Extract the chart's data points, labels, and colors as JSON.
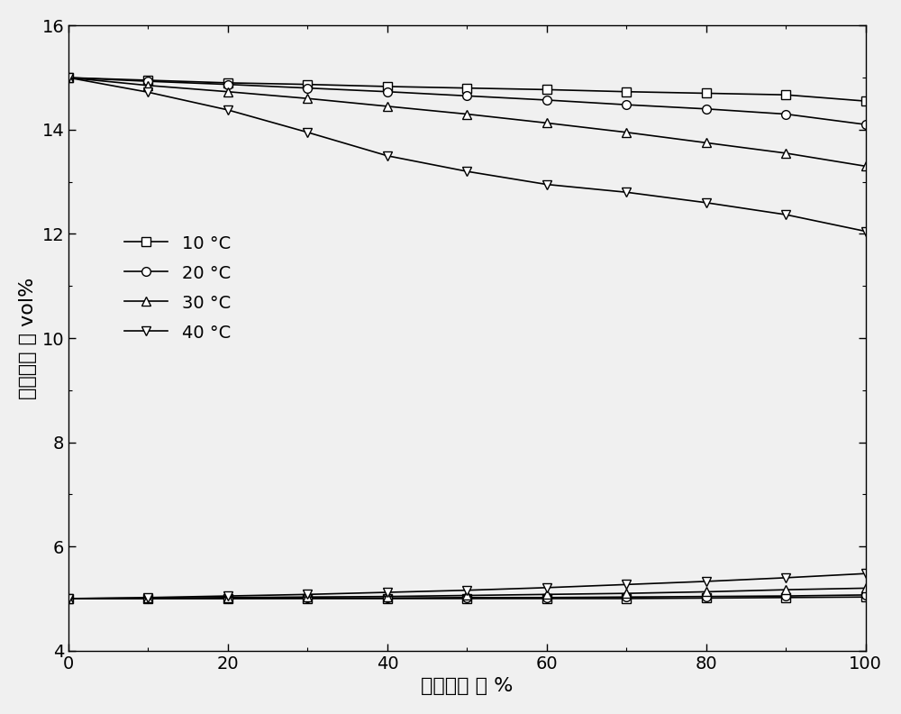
{
  "x": [
    0,
    10,
    20,
    30,
    40,
    50,
    60,
    70,
    80,
    90,
    100
  ],
  "upper_10": [
    15.0,
    14.95,
    14.9,
    14.87,
    14.83,
    14.8,
    14.77,
    14.73,
    14.7,
    14.67,
    14.55
  ],
  "upper_20": [
    15.0,
    14.93,
    14.87,
    14.8,
    14.73,
    14.65,
    14.57,
    14.48,
    14.4,
    14.3,
    14.1
  ],
  "upper_30": [
    15.0,
    14.85,
    14.73,
    14.6,
    14.45,
    14.3,
    14.13,
    13.95,
    13.75,
    13.55,
    13.3
  ],
  "upper_40": [
    15.0,
    14.72,
    14.38,
    13.95,
    13.5,
    13.2,
    12.95,
    12.8,
    12.6,
    12.37,
    12.05
  ],
  "lower_10": [
    5.0,
    5.0,
    5.0,
    5.0,
    5.0,
    5.0,
    5.0,
    5.0,
    5.01,
    5.02,
    5.03
  ],
  "lower_20": [
    5.0,
    5.0,
    5.0,
    5.01,
    5.01,
    5.02,
    5.02,
    5.03,
    5.04,
    5.05,
    5.07
  ],
  "lower_30": [
    5.0,
    5.01,
    5.02,
    5.03,
    5.04,
    5.06,
    5.08,
    5.1,
    5.13,
    5.17,
    5.2
  ],
  "lower_40": [
    5.0,
    5.02,
    5.05,
    5.08,
    5.12,
    5.16,
    5.21,
    5.27,
    5.33,
    5.4,
    5.48
  ],
  "xlabel": "相对湿度 ／ %",
  "ylabel": "爆炸极限 ／ vol%",
  "ylim": [
    4,
    16
  ],
  "xlim": [
    0,
    100
  ],
  "yticks": [
    4,
    6,
    8,
    10,
    12,
    14,
    16
  ],
  "xticks": [
    0,
    20,
    40,
    60,
    80,
    100
  ],
  "xminor_ticks": [
    10,
    30,
    50,
    70,
    90
  ],
  "legend_labels": [
    "10 °C",
    "20 °C",
    "30 °C",
    "40 °C"
  ],
  "line_color": "#000000",
  "background_color": "#f0f0f0",
  "marker_square": "s",
  "marker_circle": "o",
  "marker_up_triangle": "^",
  "marker_down_triangle": "v",
  "marker_size": 7,
  "linewidth": 1.2
}
